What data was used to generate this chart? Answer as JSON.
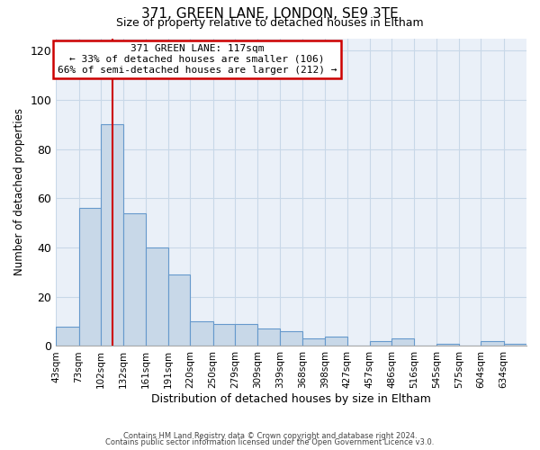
{
  "title": "371, GREEN LANE, LONDON, SE9 3TE",
  "subtitle": "Size of property relative to detached houses in Eltham",
  "xlabel": "Distribution of detached houses by size in Eltham",
  "ylabel": "Number of detached properties",
  "bar_color": "#c8d8e8",
  "bar_edge_color": "#6699cc",
  "background_color": "#ffffff",
  "plot_bg_color": "#eaf0f8",
  "grid_color": "#c8d8e8",
  "annotation_box_color": "#cc0000",
  "annotation_line_color": "#cc0000",
  "annotation_title": "371 GREEN LANE: 117sqm",
  "annotation_line1": "← 33% of detached houses are smaller (106)",
  "annotation_line2": "66% of semi-detached houses are larger (212) →",
  "property_line_x": 117,
  "categories": [
    "43sqm",
    "73sqm",
    "102sqm",
    "132sqm",
    "161sqm",
    "191sqm",
    "220sqm",
    "250sqm",
    "279sqm",
    "309sqm",
    "339sqm",
    "368sqm",
    "398sqm",
    "427sqm",
    "457sqm",
    "486sqm",
    "516sqm",
    "545sqm",
    "575sqm",
    "604sqm",
    "634sqm"
  ],
  "bin_edges": [
    43,
    73,
    102,
    132,
    161,
    191,
    220,
    250,
    279,
    309,
    339,
    368,
    398,
    427,
    457,
    486,
    516,
    545,
    575,
    604,
    634,
    664
  ],
  "values": [
    8,
    56,
    90,
    54,
    40,
    29,
    10,
    9,
    9,
    7,
    6,
    3,
    4,
    0,
    2,
    3,
    0,
    1,
    0,
    2,
    1
  ],
  "ylim": [
    0,
    125
  ],
  "yticks": [
    0,
    20,
    40,
    60,
    80,
    100,
    120
  ],
  "footer1": "Contains HM Land Registry data © Crown copyright and database right 2024.",
  "footer2": "Contains public sector information licensed under the Open Government Licence v3.0."
}
